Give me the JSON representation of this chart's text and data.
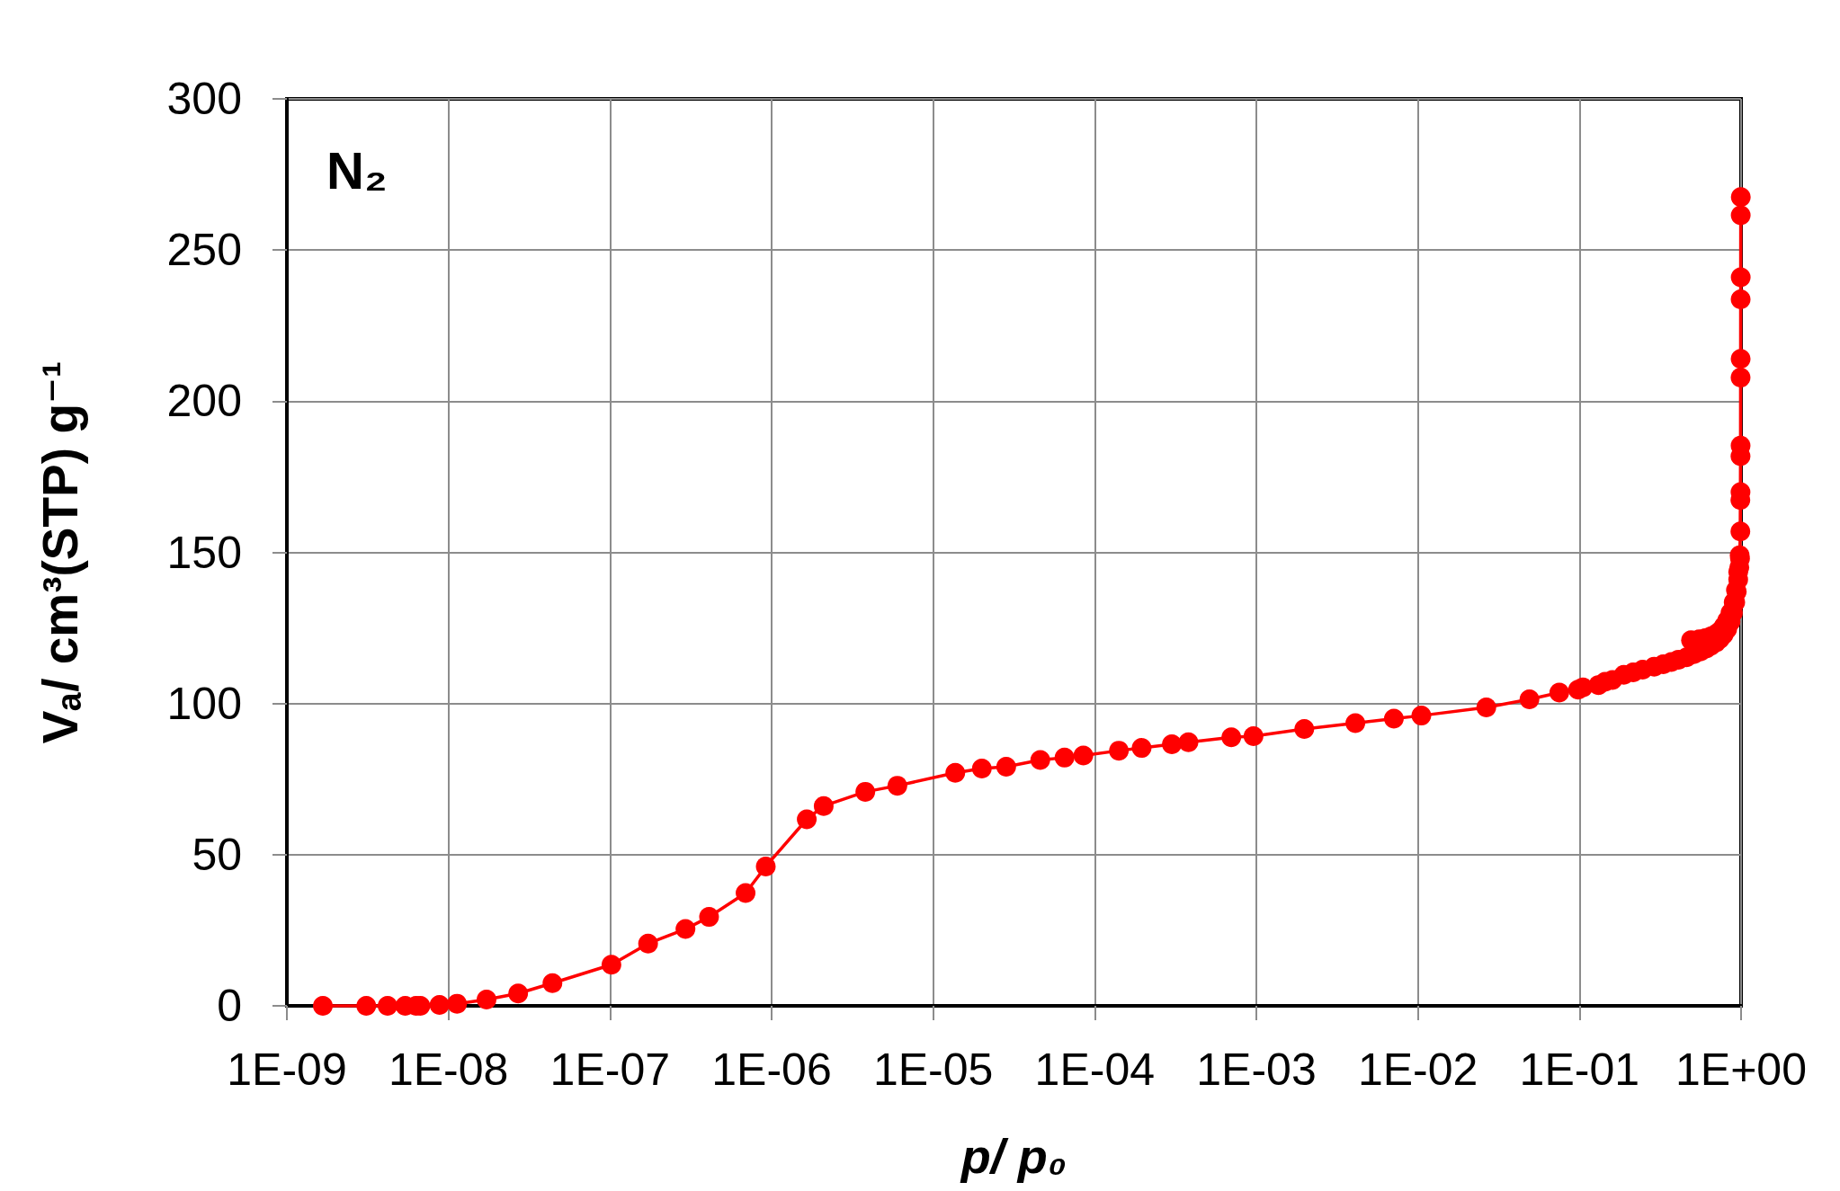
{
  "chart_data": {
    "type": "line",
    "xlabel": "p/ p₀",
    "ylabel": "Vₐ/ cm³(STP) g⁻¹",
    "annotations": [
      "N₂"
    ],
    "log": "x",
    "xlim": [
      1e-09,
      1
    ],
    "xticks": [
      {
        "value": 1e-09,
        "label": "1E-09"
      },
      {
        "value": 1e-08,
        "label": "1E-08"
      },
      {
        "value": 1e-07,
        "label": "1E-07"
      },
      {
        "value": 1e-06,
        "label": "1E-06"
      },
      {
        "value": 1e-05,
        "label": "1E-05"
      },
      {
        "value": 0.0001,
        "label": "1E-04"
      },
      {
        "value": 0.001,
        "label": "1E-03"
      },
      {
        "value": 0.01,
        "label": "1E-02"
      },
      {
        "value": 0.1,
        "label": "1E-01"
      },
      {
        "value": 1,
        "label": "1E+00"
      }
    ],
    "ylim": [
      0,
      300
    ],
    "yticks": [
      0,
      50,
      100,
      150,
      200,
      250,
      300
    ],
    "grid": true,
    "marker": "circle",
    "line_style": "solid",
    "series": [
      {
        "color": "#ff0000",
        "x": [
          1.67e-09,
          3.1e-09,
          4.2e-09,
          5.4e-09,
          6.3e-09,
          6.7e-09,
          8.8e-09,
          1.13e-08,
          1.72e-08,
          2.7e-08,
          4.4e-08,
          1.02e-07,
          1.72e-07,
          2.93e-07,
          4.1e-07,
          6.9e-07,
          9.2e-07,
          1.65e-06,
          2.1e-06,
          3.8e-06,
          6e-06,
          1.37e-05,
          2e-05,
          2.83e-05,
          4.6e-05,
          6.5e-05,
          8.5e-05,
          0.000141,
          0.000195,
          0.0003,
          0.00038,
          0.0007,
          0.00096,
          0.00198,
          0.0041,
          0.0071,
          0.0105,
          0.0265,
          0.049,
          0.075,
          0.098,
          0.105,
          0.131,
          0.144,
          0.16,
          0.188,
          0.215,
          0.246,
          0.29,
          0.33,
          0.37,
          0.41,
          0.46,
          0.51,
          0.56,
          0.61,
          0.65,
          0.7,
          0.74,
          0.78,
          0.82,
          0.86,
          0.89,
          0.92,
          0.94,
          0.96,
          0.975,
          0.985,
          0.99,
          0.992,
          0.993,
          0.994,
          0.995,
          0.996,
          0.995,
          0.994,
          0.993,
          0.992,
          0.99,
          0.98,
          0.96,
          0.93,
          0.9,
          0.86,
          0.82,
          0.78,
          0.74,
          0.7,
          0.65,
          0.6,
          0.55,
          0.49
        ],
        "values": [
          0,
          0,
          0,
          0,
          0,
          0,
          0.3,
          0.7,
          2.1,
          4.1,
          7.5,
          13.6,
          20.6,
          25.4,
          29.4,
          37.3,
          46.1,
          61.7,
          66.1,
          70.8,
          72.8,
          77.1,
          78.5,
          79.1,
          81.3,
          82.1,
          82.8,
          84.4,
          85.3,
          86.5,
          87.2,
          88.8,
          89.2,
          91.6,
          93.5,
          95.0,
          96.0,
          98.7,
          101.4,
          103.6,
          104.6,
          105.3,
          106.1,
          107.2,
          107.8,
          109.5,
          110.3,
          111.2,
          112.2,
          113.0,
          113.7,
          114.5,
          115.3,
          116.3,
          117.2,
          118.2,
          119.1,
          120.2,
          121.4,
          122.8,
          124.6,
          127.0,
          130.0,
          133.5,
          137.0,
          141.0,
          145.0,
          147.9,
          167.3,
          181.8,
          207.8,
          233.7,
          261.5,
          267.5,
          241,
          214,
          185.3,
          169.9,
          156.9,
          149,
          143.5,
          137.5,
          133.5,
          130,
          127.5,
          125.5,
          124,
          123,
          122.2,
          121.6,
          121.2,
          120.9
        ]
      }
    ]
  }
}
